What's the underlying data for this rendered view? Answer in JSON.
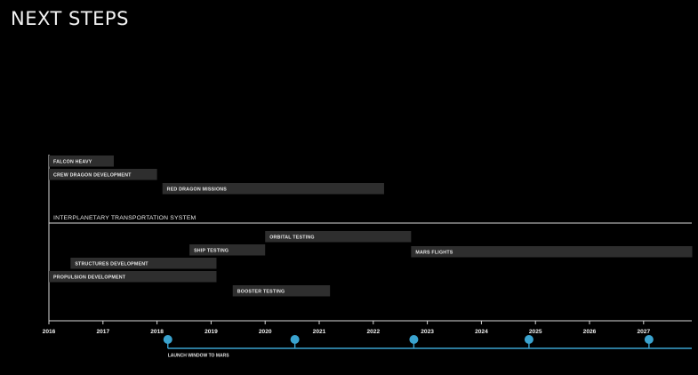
{
  "page": {
    "title": "NEXT STEPS"
  },
  "chart_data": {
    "type": "gantt",
    "title": "NEXT STEPS",
    "x_range": [
      2016,
      2027.9
    ],
    "x_ticks": [
      "2016",
      "2017",
      "2018",
      "2019",
      "2020",
      "2021",
      "2022",
      "2023",
      "2024",
      "2025",
      "2026",
      "2027"
    ],
    "groups": [
      {
        "label": "",
        "tasks": [
          {
            "name": "FALCON HEAVY",
            "start": 2016.0,
            "end": 2017.2
          },
          {
            "name": "CREW DRAGON DEVELOPMENT",
            "start": 2016.0,
            "end": 2018.0
          },
          {
            "name": "RED DRAGON MISSIONS",
            "start": 2018.1,
            "end": 2022.2
          }
        ]
      },
      {
        "label": "INTERPLANETARY TRANSPORTATION SYSTEM",
        "tasks": [
          {
            "name": "ORBITAL TESTING",
            "start": 2020.0,
            "end": 2022.7
          },
          {
            "name": "SHIP TESTING",
            "start": 2018.6,
            "end": 2020.0
          },
          {
            "name": "MARS FLIGHTS",
            "start": 2022.7,
            "end": 2027.9
          },
          {
            "name": "STRUCTURES DEVELOPMENT",
            "start": 2016.4,
            "end": 2019.1
          },
          {
            "name": "PROPULSION DEVELOPMENT",
            "start": 2016.0,
            "end": 2019.1
          },
          {
            "name": "BOOSTER TESTING",
            "start": 2019.4,
            "end": 2021.2
          }
        ]
      }
    ],
    "launch_windows": {
      "label": "LAUNCH WINDOW TO MARS",
      "dates": [
        2018.2,
        2020.55,
        2022.75,
        2024.88,
        2027.1
      ]
    }
  },
  "colors": {
    "background": "#000000",
    "bar": "#2e2e2e",
    "axis": "#d8d8d8",
    "launch": "#3aa3cf"
  }
}
